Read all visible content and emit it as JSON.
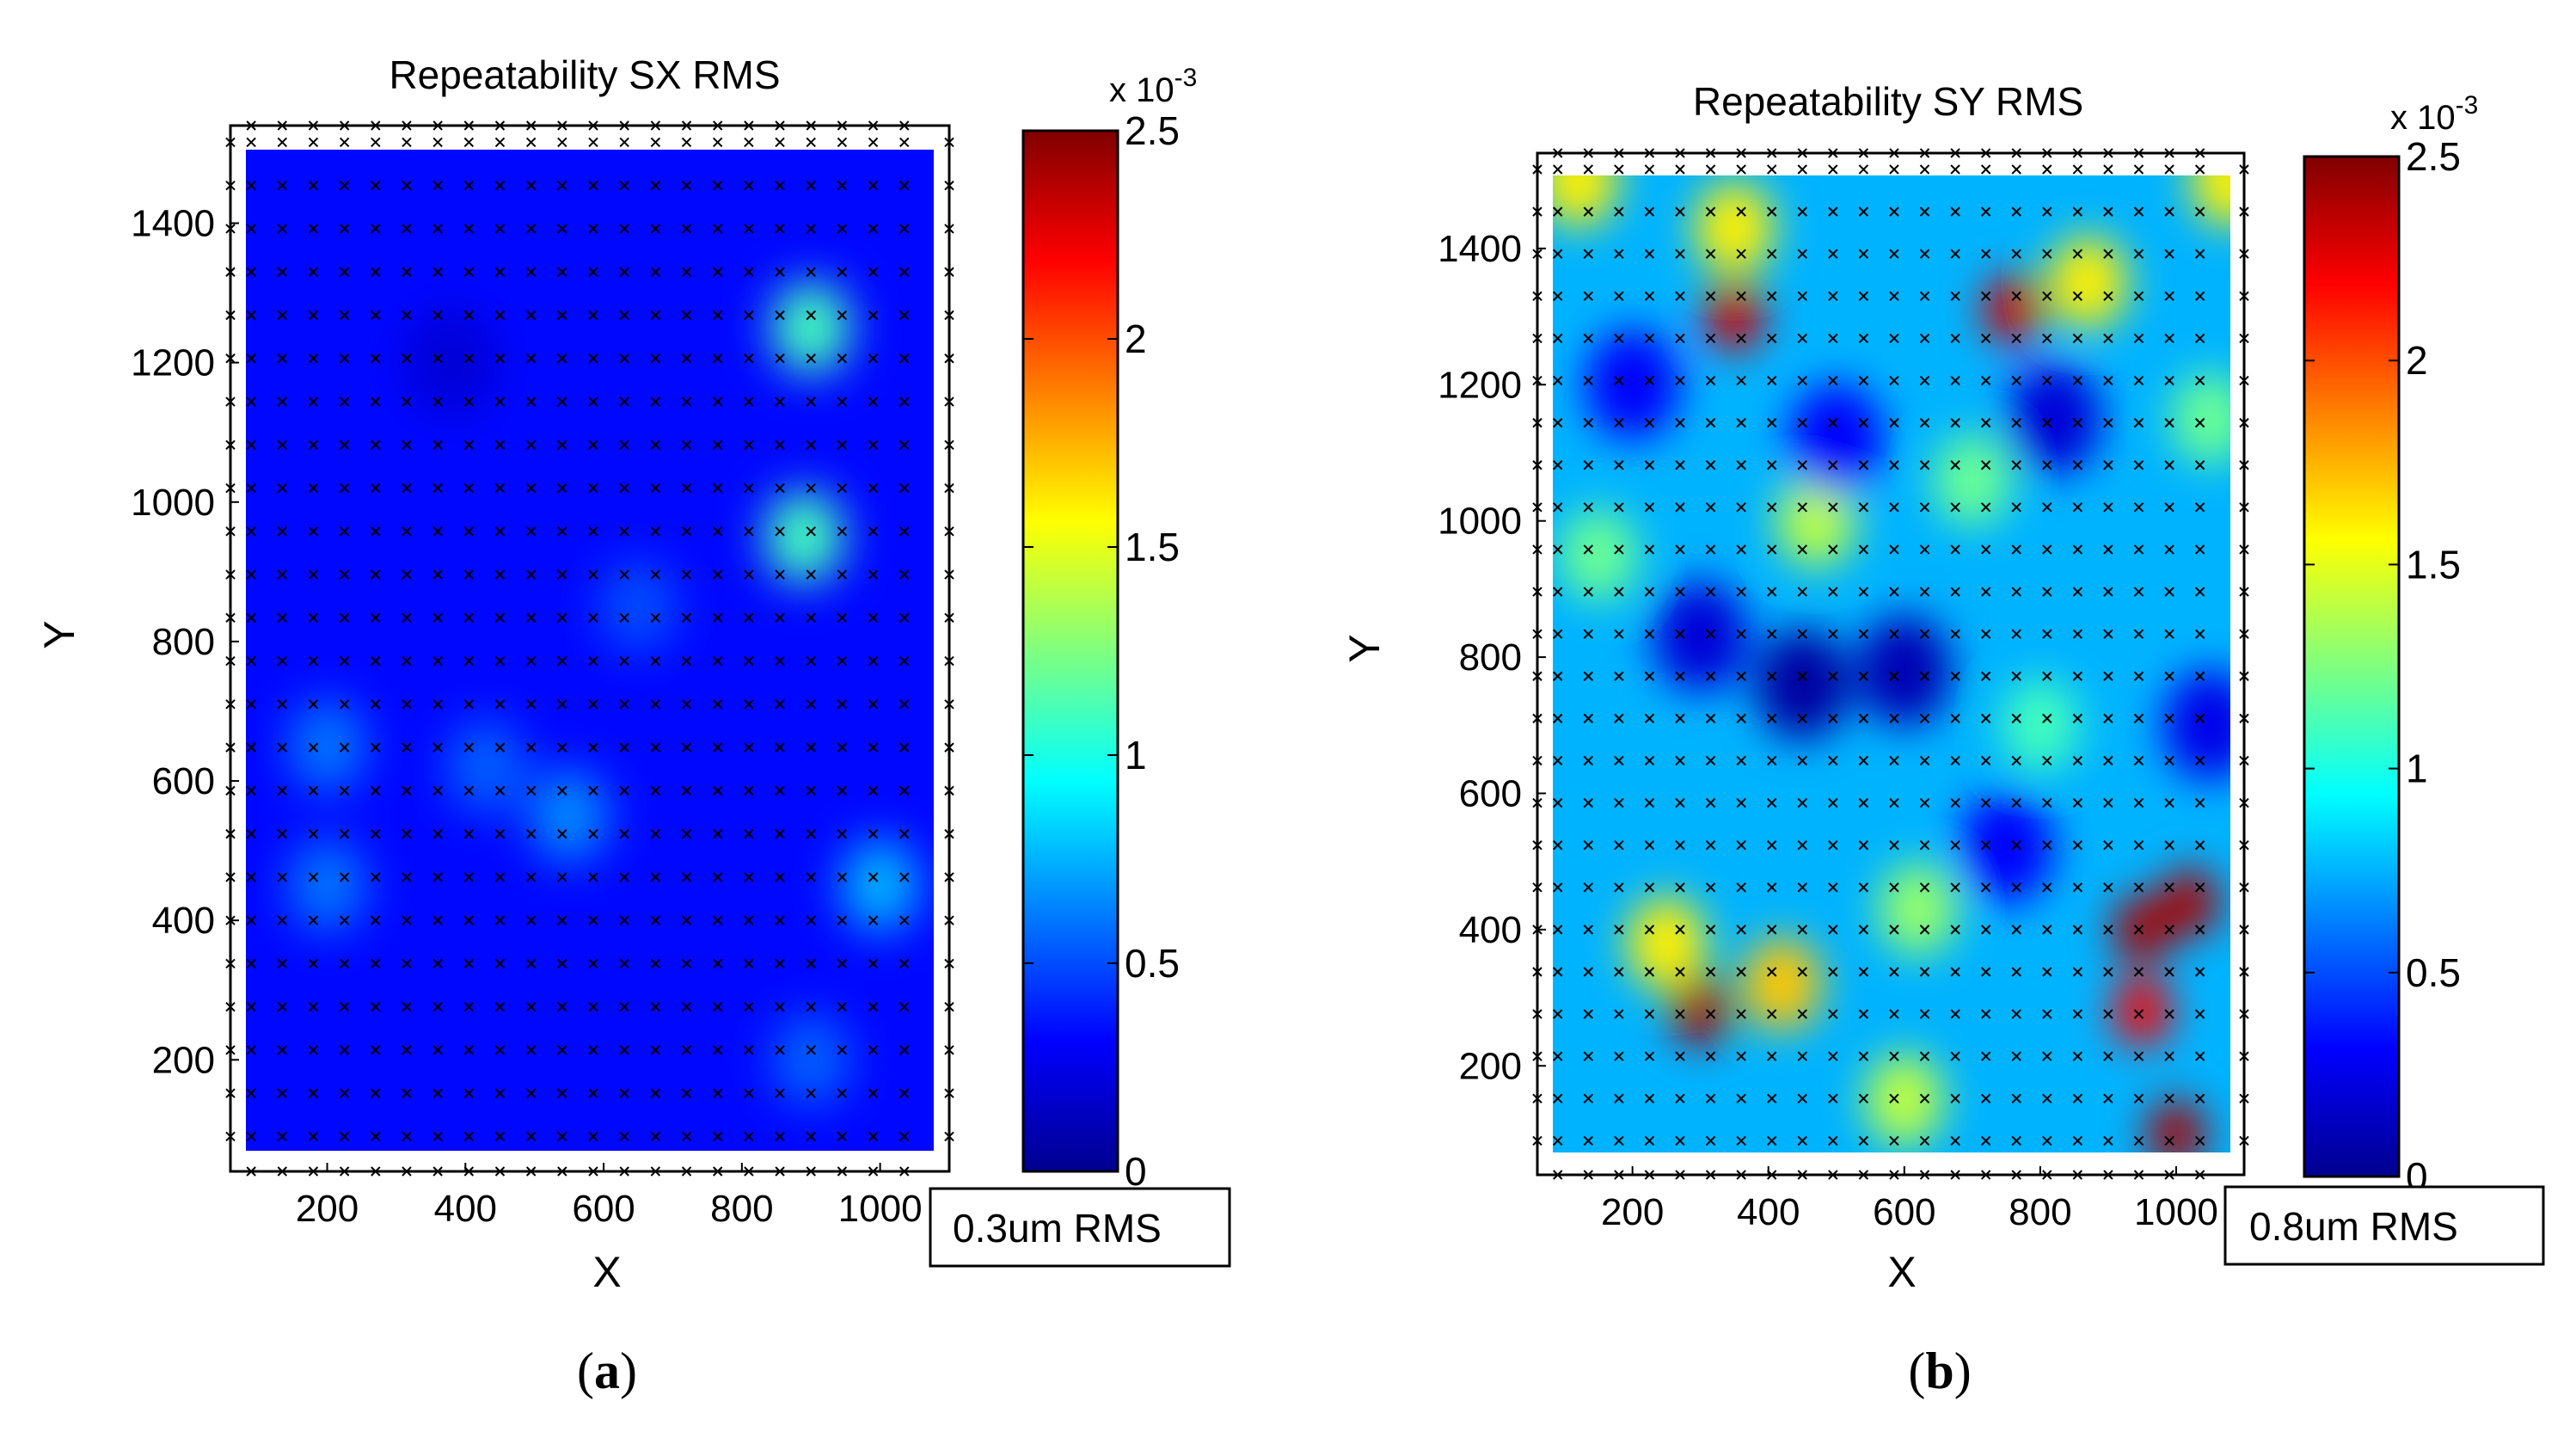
{
  "chart_data": [
    {
      "type": "heatmap",
      "panel_label": "a",
      "title": "Repeatability SX RMS",
      "xlabel": "X",
      "ylabel": "Y",
      "xlim": [
        60,
        1100
      ],
      "ylim": [
        40,
        1540
      ],
      "xticks": [
        200,
        400,
        600,
        800,
        1000
      ],
      "yticks": [
        200,
        400,
        600,
        800,
        1000,
        1200,
        1400
      ],
      "colorbar": {
        "min": 0,
        "max": 2.5,
        "ticks": [
          0,
          0.5,
          1,
          1.5,
          2,
          2.5
        ],
        "tick_labels": [
          "0",
          "0.5",
          "1",
          "1.5",
          "2",
          "2.5"
        ],
        "multiplier": "x 10",
        "exponent": "-3",
        "colormap": "jet"
      },
      "annotation": "0.3um RMS",
      "sample_grid": {
        "x_start": 90,
        "x_step": 45,
        "x_count": 22,
        "y_start": 90,
        "y_step": 62,
        "y_count": 24
      },
      "background_value": 0.33,
      "blobs": [
        {
          "x": 900,
          "y": 1250,
          "value": 1.1
        },
        {
          "x": 890,
          "y": 950,
          "value": 1.1
        },
        {
          "x": 1000,
          "y": 450,
          "value": 0.75
        },
        {
          "x": 200,
          "y": 650,
          "value": 0.6
        },
        {
          "x": 200,
          "y": 450,
          "value": 0.6
        },
        {
          "x": 550,
          "y": 550,
          "value": 0.65
        },
        {
          "x": 430,
          "y": 620,
          "value": 0.55
        },
        {
          "x": 900,
          "y": 200,
          "value": 0.55
        },
        {
          "x": 650,
          "y": 850,
          "value": 0.5
        },
        {
          "x": 380,
          "y": 1200,
          "value": 0.2
        }
      ]
    },
    {
      "type": "heatmap",
      "panel_label": "b",
      "title": "Repeatability SY RMS",
      "xlabel": "X",
      "ylabel": "Y",
      "xlim": [
        60,
        1100
      ],
      "ylim": [
        40,
        1540
      ],
      "xticks": [
        200,
        400,
        600,
        800,
        1000
      ],
      "yticks": [
        200,
        400,
        600,
        800,
        1000,
        1200,
        1400
      ],
      "colorbar": {
        "min": 0,
        "max": 2.5,
        "ticks": [
          0,
          0.5,
          1,
          1.5,
          2,
          2.5
        ],
        "tick_labels": [
          "0",
          "0.5",
          "1",
          "1.5",
          "2",
          "2.5"
        ],
        "multiplier": "x 10",
        "exponent": "-3",
        "colormap": "jet"
      },
      "annotation": "0.8um RMS",
      "sample_grid": {
        "x_start": 90,
        "x_step": 45,
        "x_count": 22,
        "y_start": 90,
        "y_step": 62,
        "y_count": 24
      },
      "background_value": 0.75,
      "blobs": [
        {
          "x": 350,
          "y": 1300,
          "value": 2.3
        },
        {
          "x": 760,
          "y": 1310,
          "value": 2.3
        },
        {
          "x": 300,
          "y": 280,
          "value": 2.4
        },
        {
          "x": 950,
          "y": 400,
          "value": 2.4
        },
        {
          "x": 1020,
          "y": 440,
          "value": 2.4
        },
        {
          "x": 950,
          "y": 280,
          "value": 2.2
        },
        {
          "x": 1000,
          "y": 100,
          "value": 2.4
        },
        {
          "x": 420,
          "y": 320,
          "value": 1.7
        },
        {
          "x": 250,
          "y": 380,
          "value": 1.6
        },
        {
          "x": 870,
          "y": 1350,
          "value": 1.6
        },
        {
          "x": 350,
          "y": 1430,
          "value": 1.6
        },
        {
          "x": 1080,
          "y": 1500,
          "value": 1.6
        },
        {
          "x": 120,
          "y": 1500,
          "value": 1.6
        },
        {
          "x": 470,
          "y": 1000,
          "value": 1.4
        },
        {
          "x": 600,
          "y": 150,
          "value": 1.4
        },
        {
          "x": 620,
          "y": 430,
          "value": 1.3
        },
        {
          "x": 1050,
          "y": 1150,
          "value": 1.2
        },
        {
          "x": 150,
          "y": 950,
          "value": 1.2
        },
        {
          "x": 700,
          "y": 1060,
          "value": 1.2
        },
        {
          "x": 800,
          "y": 700,
          "value": 1.1
        },
        {
          "x": 200,
          "y": 1200,
          "value": 0.3
        },
        {
          "x": 450,
          "y": 760,
          "value": 0.05
        },
        {
          "x": 600,
          "y": 780,
          "value": 0.1
        },
        {
          "x": 820,
          "y": 1150,
          "value": 0.2
        },
        {
          "x": 300,
          "y": 830,
          "value": 0.2
        },
        {
          "x": 1050,
          "y": 700,
          "value": 0.25
        },
        {
          "x": 500,
          "y": 1120,
          "value": 0.3
        },
        {
          "x": 750,
          "y": 520,
          "value": 0.3
        }
      ]
    }
  ]
}
